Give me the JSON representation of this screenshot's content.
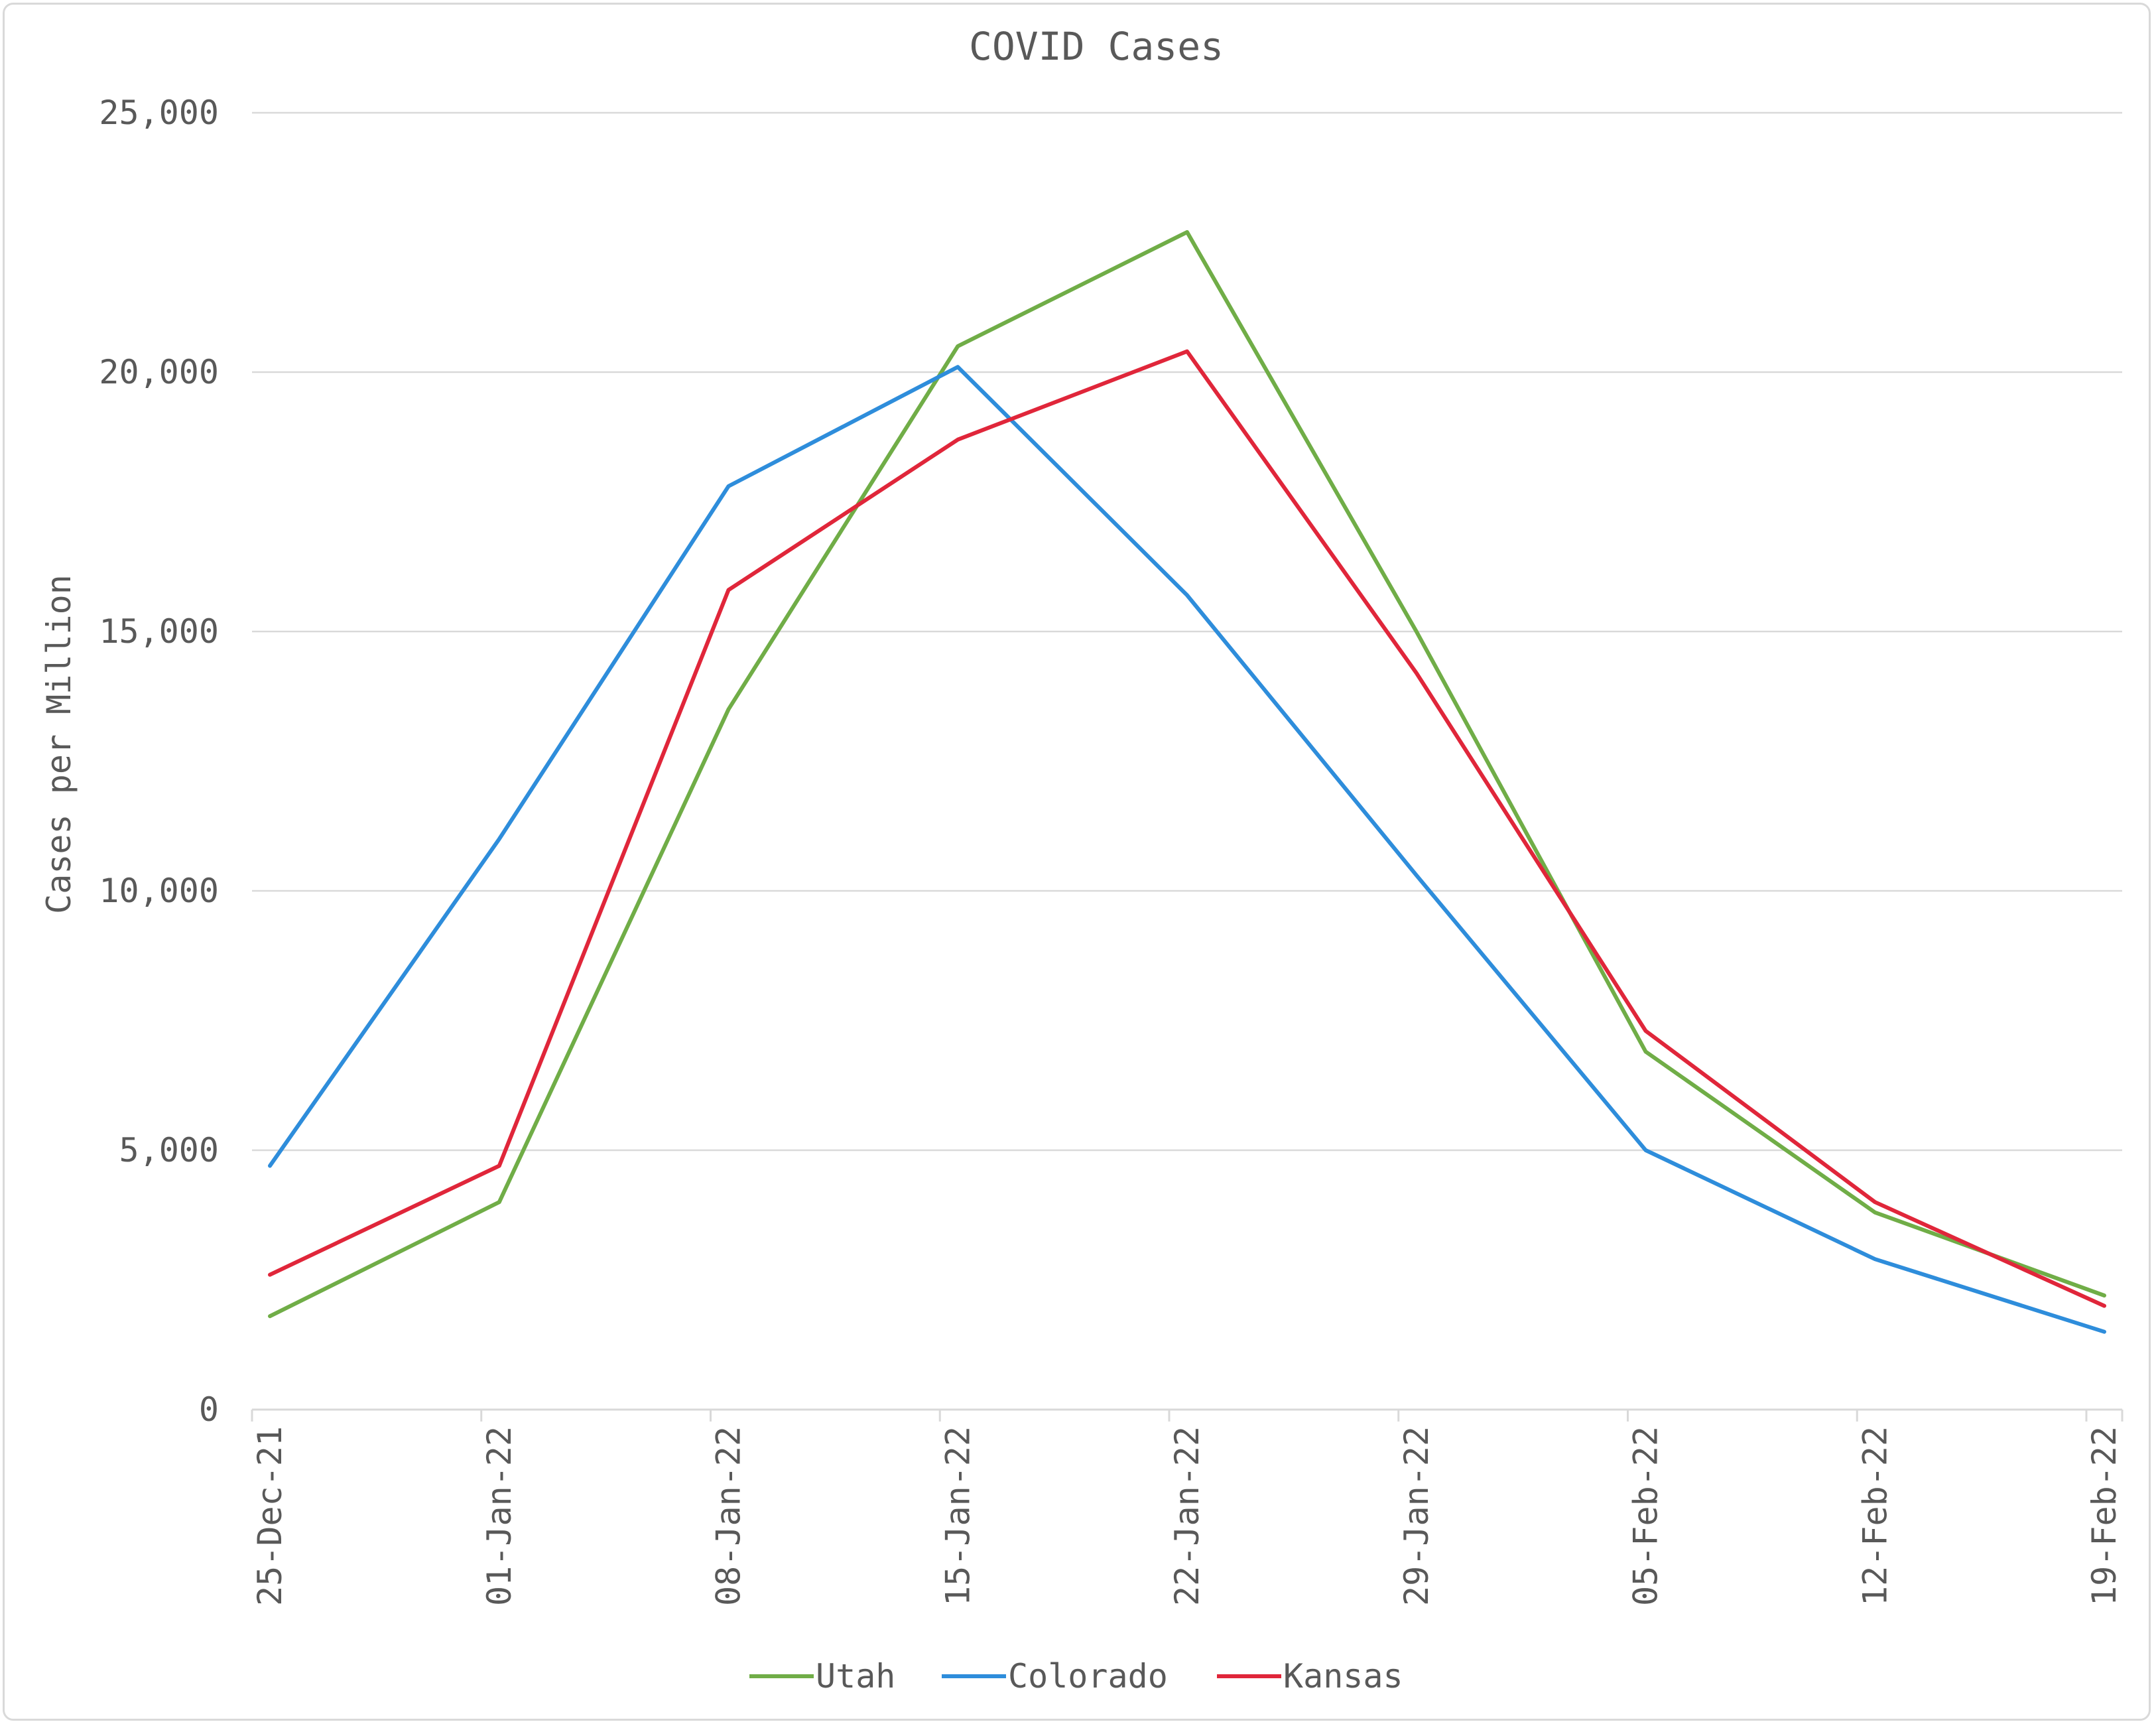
{
  "chart_data": {
    "type": "line",
    "title": "COVID Cases",
    "xlabel": "",
    "ylabel": "Cases per Million",
    "categories": [
      "25-Dec-21",
      "01-Jan-22",
      "08-Jan-22",
      "15-Jan-22",
      "22-Jan-22",
      "29-Jan-22",
      "05-Feb-22",
      "12-Feb-22",
      "19-Feb-22"
    ],
    "x_dates": [
      "2021-12-25",
      "2022-01-01",
      "2022-01-08",
      "2022-01-15",
      "2022-01-22",
      "2022-01-29",
      "2022-02-05",
      "2022-02-12",
      "2022-02-19"
    ],
    "ylim": [
      0,
      25000
    ],
    "yticks": [
      0,
      5000,
      10000,
      15000,
      20000,
      25000
    ],
    "ytick_labels": [
      "0",
      "5,000",
      "10,000",
      "15,000",
      "20,000",
      "25,000"
    ],
    "grid": "horizontal",
    "legend_position": "bottom",
    "series": [
      {
        "name": "Utah",
        "color": "#70ad47",
        "x": [
          "2021-12-25",
          "2022-01-01",
          "2022-01-08",
          "2022-01-15",
          "2022-01-22",
          "2022-01-29",
          "2022-02-05",
          "2022-02-12",
          "2022-02-19"
        ],
        "values": [
          1800,
          4000,
          13500,
          20500,
          22700,
          15000,
          6900,
          3800,
          2200
        ]
      },
      {
        "name": "Colorado",
        "color": "#2e8ddb",
        "x": [
          "2021-12-25",
          "2022-01-01",
          "2022-01-08",
          "2022-01-15",
          "2022-01-22",
          "2022-01-29",
          "2022-02-05",
          "2022-02-12",
          "2022-02-19"
        ],
        "values": [
          4700,
          11000,
          17800,
          20100,
          15700,
          10300,
          5000,
          2900,
          1500
        ]
      },
      {
        "name": "Kansas",
        "color": "#e0263a",
        "x": [
          "2021-12-25",
          "2022-01-01",
          "2022-01-08",
          "2022-01-15",
          "2022-01-22",
          "2022-01-29",
          "2022-02-05",
          "2022-02-12",
          "2022-02-19"
        ],
        "values": [
          2600,
          4700,
          15800,
          18700,
          20400,
          14200,
          7300,
          4000,
          2000
        ]
      }
    ]
  }
}
